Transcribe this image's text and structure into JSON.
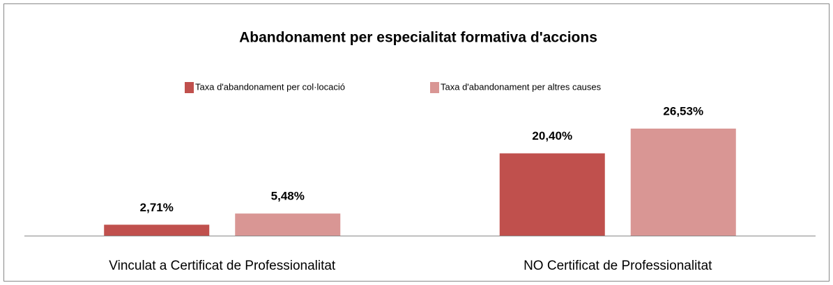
{
  "chart_data": {
    "type": "bar",
    "title": "Abandonament per especialitat formativa d'accions",
    "categories": [
      "Vinculat  a Certificat de Professionalitat",
      "NO Certificat de Professionalitat"
    ],
    "series": [
      {
        "name": "Taxa d'abandonament per col·locació",
        "color": "#c0504d",
        "values": [
          2.71,
          20.4
        ],
        "value_labels": [
          "2,71%",
          "20,40%"
        ]
      },
      {
        "name": "Taxa d'abandonament per altres causes",
        "color": "#d99694",
        "values": [
          5.48,
          26.53
        ],
        "value_labels": [
          "5,48%",
          "26,53%"
        ]
      }
    ],
    "legend": "top"
  }
}
